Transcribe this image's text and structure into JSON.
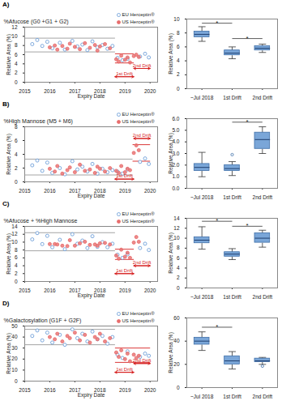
{
  "chart_data": [
    {
      "type": "scatter",
      "panel_label": "A)",
      "title": "%Afucose (G0 +G1 + G2)",
      "x_label": "Expiry Date",
      "y_label": "Relative Area (%)",
      "xlim": [
        2015,
        2020.3
      ],
      "xticks": [
        2015,
        2016,
        2017,
        2018,
        2019,
        2020
      ],
      "ylim": [
        0,
        12
      ],
      "yticks": [
        0,
        2,
        4,
        6,
        8,
        10,
        12
      ],
      "legend": "top-right",
      "series": [
        {
          "name": "EU Herceptin®",
          "color": "#6f9fd8",
          "marker": "open circle",
          "x": [
            2015.3,
            2015.5,
            2015.7,
            2015.9,
            2016.1,
            2016.4,
            2016.6,
            2016.9,
            2017.1,
            2017.3,
            2017.5,
            2017.7,
            2017.9,
            2018.1,
            2018.3,
            2018.5,
            2018.7,
            2018.9,
            2019.1,
            2019.6,
            2019.8,
            2019.95
          ],
          "values": [
            8.3,
            9.2,
            7.9,
            8.8,
            7.4,
            8.6,
            7.1,
            9.0,
            7.8,
            8.2,
            7.0,
            8.9,
            7.6,
            8.1,
            7.3,
            7.9,
            5.3,
            4.8,
            5.1,
            5.6,
            6.2,
            5.4
          ]
        },
        {
          "name": "US Herceptin®",
          "color": "#e86e6e",
          "marker": "circle",
          "x": [
            2016.0,
            2016.2,
            2016.3,
            2016.5,
            2016.7,
            2016.8,
            2017.0,
            2017.2,
            2017.4,
            2017.6,
            2017.8,
            2017.9,
            2018.0,
            2018.2,
            2018.4,
            2018.65,
            2018.75,
            2018.85,
            2019.0,
            2019.1,
            2019.2,
            2019.35,
            2019.45,
            2019.55
          ],
          "values": [
            7.6,
            8.0,
            7.1,
            7.9,
            7.3,
            8.4,
            7.7,
            7.2,
            8.5,
            7.5,
            8.1,
            6.9,
            7.8,
            8.3,
            7.4,
            5.0,
            4.5,
            5.8,
            4.9,
            5.4,
            4.3,
            5.7,
            6.0,
            5.5
          ]
        }
      ],
      "reference_lines": [
        {
          "x1": 2015,
          "x2": 2018.6,
          "y": 9.6,
          "color": "#9a9a9a"
        },
        {
          "x1": 2015,
          "x2": 2018.6,
          "y": 6.6,
          "color": "#9a9a9a"
        },
        {
          "x1": 2018.6,
          "x2": 2019.35,
          "y": 6.2,
          "color": "#d62020"
        },
        {
          "x1": 2018.6,
          "x2": 2019.35,
          "y": 4.2,
          "color": "#d62020"
        }
      ],
      "annotations": [
        {
          "text": "1st Drift",
          "x1": 2018.6,
          "x2": 2019.35,
          "y": 1.2
        },
        {
          "text": "2nd Drift",
          "x1": 2019.35,
          "x2": 2020.0,
          "y": 3.0
        }
      ]
    },
    {
      "type": "box",
      "y_label": "Relative Area (%)",
      "categories": [
        "~Jul 2018",
        "1st Drift",
        "2nd Drift"
      ],
      "ylim": [
        0,
        10
      ],
      "yticks": [
        0,
        2,
        4,
        6,
        8,
        10
      ],
      "color": "#7aa6d8",
      "boxes": [
        {
          "min": 6.8,
          "q1": 7.4,
          "median": 7.8,
          "q3": 8.2,
          "max": 8.9,
          "outliers": []
        },
        {
          "min": 4.3,
          "q1": 4.8,
          "median": 5.1,
          "q3": 5.5,
          "max": 6.0,
          "outliers": []
        },
        {
          "min": 5.2,
          "q1": 5.5,
          "median": 5.8,
          "q3": 6.1,
          "max": 6.4,
          "outliers": []
        }
      ],
      "significance": [
        {
          "from": "~Jul 2018",
          "to": "1st Drift",
          "y": 9.4,
          "label": "*"
        },
        {
          "from": "1st Drift",
          "to": "2nd Drift",
          "y": 7.2,
          "label": "*"
        }
      ]
    },
    {
      "type": "scatter",
      "panel_label": "B)",
      "title": "%High Mannose (M5 + M6)",
      "x_label": "Expiry Date",
      "y_label": "Relative Area (%)",
      "xlim": [
        2015,
        2020.3
      ],
      "xticks": [
        2015,
        2016,
        2017,
        2018,
        2019,
        2020
      ],
      "ylim": [
        0,
        8
      ],
      "yticks": [
        0,
        2,
        4,
        6,
        8
      ],
      "legend": "top-right",
      "series": [
        {
          "name": "EU Herceptin®",
          "color": "#6f9fd8",
          "marker": "open circle",
          "x": [
            2015.3,
            2015.5,
            2015.7,
            2015.9,
            2016.1,
            2016.4,
            2016.6,
            2016.9,
            2017.1,
            2017.3,
            2017.5,
            2017.7,
            2017.9,
            2018.1,
            2018.3,
            2018.5,
            2018.7,
            2018.9,
            2019.1,
            2019.6,
            2019.8,
            2019.95
          ],
          "values": [
            2.4,
            3.1,
            1.6,
            2.8,
            1.3,
            2.0,
            1.1,
            3.0,
            1.8,
            2.2,
            1.5,
            2.6,
            1.2,
            1.9,
            1.4,
            1.7,
            1.5,
            1.2,
            1.8,
            2.9,
            3.4,
            2.6
          ]
        },
        {
          "name": "US Herceptin®",
          "color": "#e86e6e",
          "marker": "circle",
          "x": [
            2016.0,
            2016.2,
            2016.3,
            2016.5,
            2016.7,
            2016.8,
            2017.0,
            2017.2,
            2017.4,
            2017.6,
            2017.8,
            2017.9,
            2018.0,
            2018.2,
            2018.4,
            2018.65,
            2018.75,
            2018.85,
            2019.0,
            2019.1,
            2019.2,
            2019.35,
            2019.45,
            2019.55
          ],
          "values": [
            1.9,
            1.5,
            2.3,
            1.2,
            1.7,
            2.1,
            1.4,
            2.5,
            1.6,
            1.8,
            1.3,
            2.2,
            1.9,
            1.5,
            2.0,
            1.6,
            1.3,
            2.3,
            1.4,
            1.9,
            1.7,
            4.2,
            5.3,
            4.6
          ]
        }
      ],
      "reference_lines": [
        {
          "x1": 2015,
          "x2": 2019.3,
          "y": 3.3,
          "color": "#9a9a9a"
        },
        {
          "x1": 2015,
          "x2": 2019.3,
          "y": 1.0,
          "color": "#9a9a9a"
        },
        {
          "x1": 2019.3,
          "x2": 2020.0,
          "y": 5.4,
          "color": "#d62020"
        },
        {
          "x1": 2019.3,
          "x2": 2020.0,
          "y": 3.0,
          "color": "#d62020"
        }
      ],
      "annotations": [
        {
          "text": "1st Drift",
          "x1": 2018.6,
          "x2": 2019.35,
          "y": 0.4
        },
        {
          "text": "2nd Drift",
          "x1": 2019.35,
          "x2": 2020.0,
          "y": 6.3
        }
      ]
    },
    {
      "type": "box",
      "y_label": "Relative Area (%)",
      "categories": [
        "~Jul 2018",
        "1st Drift",
        "2nd Drift"
      ],
      "ylim": [
        0,
        6
      ],
      "yticks": [
        0,
        1,
        2,
        3,
        4,
        5,
        6
      ],
      "color": "#7aa6d8",
      "boxes": [
        {
          "min": 1.0,
          "q1": 1.5,
          "median": 1.8,
          "q3": 2.1,
          "max": 3.1,
          "outliers": []
        },
        {
          "min": 1.1,
          "q1": 1.5,
          "median": 1.7,
          "q3": 2.0,
          "max": 2.3,
          "outliers": [
            2.9
          ]
        },
        {
          "min": 3.0,
          "q1": 3.4,
          "median": 4.2,
          "q3": 4.8,
          "max": 5.3,
          "outliers": []
        }
      ],
      "significance": [
        {
          "from": "1st Drift",
          "to": "2nd Drift",
          "y": 5.7,
          "label": "*"
        }
      ]
    },
    {
      "type": "scatter",
      "panel_label": "C)",
      "title": "%Afucose + %High Mannose",
      "x_label": "Expiry Date",
      "y_label": "Relative Area (%)",
      "xlim": [
        2015,
        2020.3
      ],
      "xticks": [
        2015,
        2016,
        2017,
        2018,
        2019,
        2020
      ],
      "ylim": [
        0,
        14
      ],
      "yticks": [
        0,
        2,
        4,
        6,
        8,
        10,
        12,
        14
      ],
      "legend": "top-right",
      "series": [
        {
          "name": "EU Herceptin®",
          "color": "#6f9fd8",
          "marker": "open circle",
          "x": [
            2015.3,
            2015.5,
            2015.7,
            2015.9,
            2016.1,
            2016.4,
            2016.6,
            2016.9,
            2017.1,
            2017.3,
            2017.5,
            2017.7,
            2017.9,
            2018.1,
            2018.3,
            2018.5,
            2018.7,
            2018.9,
            2019.1,
            2019.6,
            2019.8,
            2019.95
          ],
          "values": [
            10.7,
            12.3,
            9.5,
            11.6,
            8.7,
            10.6,
            8.2,
            12.0,
            9.6,
            10.4,
            8.5,
            11.5,
            8.8,
            10.0,
            8.7,
            9.6,
            6.8,
            6.0,
            6.9,
            8.5,
            9.6,
            8.0
          ]
        },
        {
          "name": "US Herceptin®",
          "color": "#e86e6e",
          "marker": "circle",
          "x": [
            2016.0,
            2016.2,
            2016.3,
            2016.5,
            2016.7,
            2016.8,
            2017.0,
            2017.2,
            2017.4,
            2017.6,
            2017.8,
            2017.9,
            2018.0,
            2018.2,
            2018.4,
            2018.65,
            2018.75,
            2018.85,
            2019.0,
            2019.1,
            2019.2,
            2019.35,
            2019.45,
            2019.55
          ],
          "values": [
            9.5,
            9.5,
            9.4,
            9.1,
            9.0,
            10.5,
            9.1,
            9.7,
            10.1,
            9.3,
            9.4,
            9.1,
            9.7,
            9.8,
            9.4,
            6.6,
            5.8,
            8.1,
            6.3,
            7.3,
            6.0,
            9.9,
            11.3,
            10.1
          ]
        }
      ],
      "reference_lines": [
        {
          "x1": 2015,
          "x2": 2018.6,
          "y": 12.4,
          "color": "#9a9a9a"
        },
        {
          "x1": 2015,
          "x2": 2018.6,
          "y": 7.8,
          "color": "#9a9a9a"
        },
        {
          "x1": 2018.6,
          "x2": 2019.35,
          "y": 8.2,
          "color": "#d62020"
        },
        {
          "x1": 2018.6,
          "x2": 2019.35,
          "y": 5.6,
          "color": "#d62020"
        }
      ],
      "annotations": [
        {
          "text": "1st Drift",
          "x1": 2018.6,
          "x2": 2019.35,
          "y": 2.0
        },
        {
          "text": "2nd Drift",
          "x1": 2019.35,
          "x2": 2020.0,
          "y": 4.0
        }
      ]
    },
    {
      "type": "box",
      "y_label": "Relative Area (%)",
      "categories": [
        "~Jul 2018",
        "1st Drift",
        "2nd Drift"
      ],
      "ylim": [
        0,
        14
      ],
      "yticks": [
        0,
        2,
        4,
        6,
        8,
        10,
        12,
        14
      ],
      "color": "#7aa6d8",
      "boxes": [
        {
          "min": 7.8,
          "q1": 9.0,
          "median": 9.6,
          "q3": 10.2,
          "max": 12.3,
          "outliers": []
        },
        {
          "min": 5.7,
          "q1": 6.3,
          "median": 6.8,
          "q3": 7.2,
          "max": 7.9,
          "outliers": []
        },
        {
          "min": 8.2,
          "q1": 9.1,
          "median": 10.0,
          "q3": 11.0,
          "max": 11.6,
          "outliers": []
        }
      ],
      "significance": [
        {
          "from": "~Jul 2018",
          "to": "1st Drift",
          "y": 13.4,
          "label": "*"
        },
        {
          "from": "1st Drift",
          "to": "2nd Drift",
          "y": 12.4,
          "label": "*"
        }
      ]
    },
    {
      "type": "scatter",
      "panel_label": "D)",
      "title": "%Galactosylation (G1F + G2F)",
      "x_label": "Expiry Date",
      "y_label": "Relative Area (%)",
      "xlim": [
        2015,
        2020.3
      ],
      "xticks": [
        2015,
        2016,
        2017,
        2018,
        2019,
        2020
      ],
      "ylim": [
        0,
        50
      ],
      "yticks": [
        0,
        10,
        20,
        30,
        40,
        50
      ],
      "legend": "top-right",
      "series": [
        {
          "name": "EU Herceptin®",
          "color": "#6f9fd8",
          "marker": "open circle",
          "x": [
            2015.3,
            2015.5,
            2015.7,
            2015.9,
            2016.1,
            2016.4,
            2016.6,
            2016.9,
            2017.1,
            2017.3,
            2017.5,
            2017.7,
            2017.9,
            2018.1,
            2018.3,
            2018.5,
            2018.7,
            2018.9,
            2019.1,
            2019.6,
            2019.8,
            2019.95
          ],
          "values": [
            41,
            46,
            37,
            44,
            35,
            42,
            33,
            47,
            39,
            43,
            36,
            45,
            38,
            41,
            34,
            40,
            24,
            21,
            27,
            22,
            25,
            23
          ]
        },
        {
          "name": "US Herceptin®",
          "color": "#e86e6e",
          "marker": "circle",
          "x": [
            2016.0,
            2016.2,
            2016.3,
            2016.5,
            2016.7,
            2016.8,
            2017.0,
            2017.2,
            2017.4,
            2017.6,
            2017.8,
            2017.9,
            2018.0,
            2018.2,
            2018.4,
            2018.65,
            2018.75,
            2018.85,
            2019.0,
            2019.1,
            2019.2,
            2019.35,
            2019.45,
            2019.55
          ],
          "values": [
            40,
            38,
            43,
            36,
            41,
            39,
            44,
            37,
            42,
            35,
            40,
            38,
            43,
            36,
            39,
            26,
            22,
            28,
            20,
            25,
            18,
            24,
            21,
            23
          ]
        }
      ],
      "reference_lines": [
        {
          "x1": 2015,
          "x2": 2018.6,
          "y": 47,
          "color": "#9a9a9a"
        },
        {
          "x1": 2015,
          "x2": 2018.6,
          "y": 33,
          "color": "#9a9a9a"
        },
        {
          "x1": 2018.6,
          "x2": 2020.0,
          "y": 30,
          "color": "#d62020"
        },
        {
          "x1": 2018.6,
          "x2": 2020.0,
          "y": 17,
          "color": "#d62020"
        }
      ],
      "annotations": [
        {
          "text": "1st Drift",
          "x1": 2018.6,
          "x2": 2019.35,
          "y": 8
        },
        {
          "text": "2nd Drift",
          "x1": 2019.35,
          "x2": 2020.0,
          "y": 16
        }
      ]
    },
    {
      "type": "box",
      "y_label": "Relative Area (%)",
      "categories": [
        "~Jul 2018",
        "1st Drift",
        "2nd Drift"
      ],
      "ylim": [
        0,
        60
      ],
      "yticks": [
        0,
        20,
        40,
        60
      ],
      "color": "#7aa6d8",
      "boxes": [
        {
          "min": 32,
          "q1": 37,
          "median": 40,
          "q3": 43,
          "max": 48,
          "outliers": []
        },
        {
          "min": 16,
          "q1": 20,
          "median": 23,
          "q3": 27,
          "max": 31,
          "outliers": []
        },
        {
          "min": 20,
          "q1": 22,
          "median": 23,
          "q3": 25,
          "max": 26,
          "outliers": [
            18.5
          ]
        }
      ],
      "significance": [
        {
          "from": "~Jul 2018",
          "to": "1st Drift",
          "y": 52,
          "label": "*"
        }
      ]
    }
  ]
}
